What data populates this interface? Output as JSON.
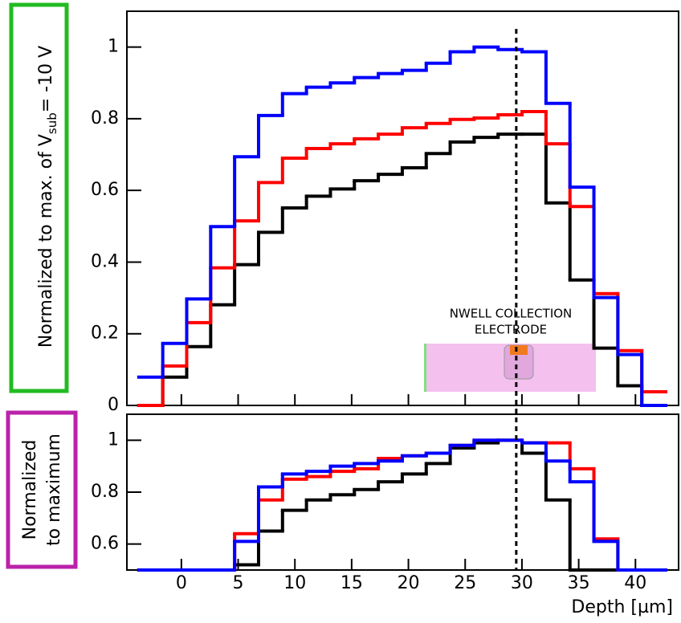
{
  "chart_data": [
    {
      "type": "histogram",
      "y_label": {
        "main": "Normalized to max. of V",
        "sub": "sub",
        "tail": "= -10 V"
      },
      "inset_labels": [
        "NWELL COLLECTION",
        "ELECTRODE"
      ],
      "bins": [
        -3.75,
        -1.64,
        0.47,
        2.58,
        4.69,
        6.8,
        8.91,
        11.02,
        13.13,
        15.24,
        17.35,
        19.46,
        21.57,
        23.68,
        25.79,
        27.9,
        30.01,
        32.12,
        34.23,
        36.34,
        38.45,
        40.56,
        42.67
      ],
      "xlim": [
        -4.8,
        43.8
      ],
      "ylim": [
        0,
        1.1
      ],
      "yticks": [
        0,
        0.2,
        0.4,
        0.6,
        0.8,
        1
      ],
      "reference_x": 29.5,
      "series": [
        {
          "color": "#000000",
          "values": [
            0,
            0.079,
            0.164,
            0.281,
            0.393,
            0.483,
            0.551,
            0.584,
            0.604,
            0.627,
            0.645,
            0.663,
            0.703,
            0.735,
            0.748,
            0.757,
            0.757,
            0.565,
            0.35,
            0.16,
            0.055,
            0
          ]
        },
        {
          "color": "#ff0000",
          "values": [
            0,
            0.11,
            0.231,
            0.384,
            0.515,
            0.622,
            0.69,
            0.717,
            0.73,
            0.744,
            0.757,
            0.775,
            0.787,
            0.798,
            0.802,
            0.811,
            0.82,
            0.73,
            0.555,
            0.312,
            0.153,
            0.038
          ]
        },
        {
          "color": "#0000ff",
          "values": [
            0.079,
            0.173,
            0.297,
            0.499,
            0.694,
            0.809,
            0.87,
            0.888,
            0.9,
            0.915,
            0.926,
            0.935,
            0.955,
            0.987,
            1,
            0.993,
            0.987,
            0.843,
            0.609,
            0.301,
            0.142,
            0
          ]
        }
      ]
    },
    {
      "type": "histogram",
      "y_label": [
        "Normalized",
        "to maximum"
      ],
      "x_label": "Depth [µm]",
      "bins": [
        -3.75,
        -1.64,
        0.47,
        2.58,
        4.69,
        6.8,
        8.91,
        11.02,
        13.13,
        15.24,
        17.35,
        19.46,
        21.57,
        23.68,
        25.79,
        27.9,
        30.01,
        32.12,
        34.23,
        36.34,
        38.45,
        40.56,
        42.67
      ],
      "xlim": [
        -4.8,
        43.8
      ],
      "ylim": [
        0.5,
        1.1
      ],
      "yticks": [
        0.6,
        0.8,
        1
      ],
      "xticks": [
        0,
        5,
        10,
        15,
        20,
        25,
        30,
        35,
        40
      ],
      "series": [
        {
          "color": "#000000",
          "values": [
            0.5,
            0.5,
            0.5,
            0.5,
            0.52,
            0.65,
            0.73,
            0.77,
            0.79,
            0.81,
            0.84,
            0.87,
            0.91,
            0.97,
            0.99,
            1,
            0.95,
            0.77,
            0.5,
            0.5,
            0.5,
            0.5
          ]
        },
        {
          "color": "#ff0000",
          "values": [
            0.5,
            0.5,
            0.5,
            0.5,
            0.64,
            0.77,
            0.85,
            0.86,
            0.88,
            0.89,
            0.93,
            0.94,
            0.95,
            0.98,
            1,
            1,
            0.99,
            0.99,
            0.89,
            0.62,
            0.5,
            0.5
          ]
        },
        {
          "color": "#0000ff",
          "values": [
            0.5,
            0.5,
            0.5,
            0.5,
            0.61,
            0.82,
            0.87,
            0.88,
            0.9,
            0.91,
            0.92,
            0.94,
            0.95,
            0.98,
            1,
            1,
            0.99,
            0.92,
            0.84,
            0.61,
            0.5,
            0.5
          ]
        }
      ]
    }
  ]
}
